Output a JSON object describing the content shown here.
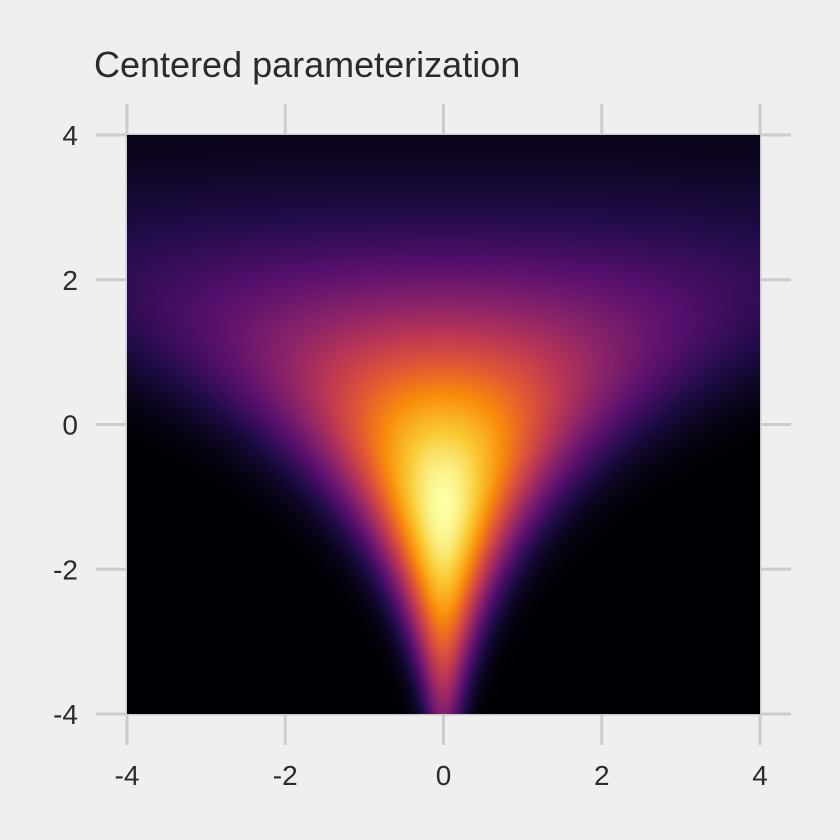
{
  "chart_data": {
    "type": "heatmap",
    "title": "Centered parameterization",
    "xlabel": "",
    "ylabel": "",
    "xlim": [
      -4,
      4
    ],
    "ylim": [
      -4,
      4
    ],
    "x_ticks": [
      -4,
      -2,
      0,
      2,
      4
    ],
    "y_ticks": [
      -4,
      -2,
      0,
      2,
      4
    ],
    "x_tick_labels": [
      "-4",
      "-2",
      "0",
      "2",
      "4"
    ],
    "y_tick_labels": [
      "-4",
      "-2",
      "0",
      "2",
      "4"
    ],
    "grid": true,
    "legend": "none",
    "colormap": "inferno",
    "density": {
      "description_key": "funnel",
      "x_center": 0,
      "log_scale_variable": "y",
      "y_mean": 0,
      "y_sd": 1.5
    },
    "colors": {
      "background": "#efefef",
      "grid": "#cccccc",
      "text": "#2b2b2b",
      "low": "#000004",
      "high": "#fcffa4"
    }
  }
}
